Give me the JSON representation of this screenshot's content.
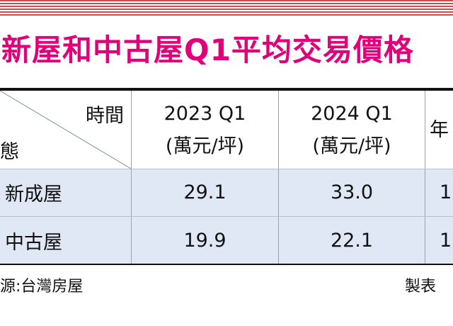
{
  "title": "新屋和中古屋Q1平均交易價格",
  "table": {
    "header_corner_top": "時間",
    "header_corner_bottom": "態",
    "columns": [
      {
        "period": "2023 Q1",
        "unit": "(萬元/坪)"
      },
      {
        "period": "2024 Q1",
        "unit": "(萬元/坪)"
      },
      {
        "period": "年",
        "unit": ""
      }
    ],
    "rows": [
      {
        "label": "新成屋",
        "values": [
          "29.1",
          "33.0",
          "1"
        ]
      },
      {
        "label": "中古屋",
        "values": [
          "19.9",
          "22.1",
          "1"
        ]
      }
    ]
  },
  "footer": {
    "source": "源:台灣房屋",
    "credit": "製表"
  },
  "colors": {
    "title": "#e0007a",
    "row_band": "#dfe8f4",
    "top_stripe": "#d04a52"
  },
  "chart_data": {
    "type": "table",
    "title": "新屋和中古屋Q1平均交易價格",
    "categories": [
      "2023 Q1",
      "2024 Q1"
    ],
    "unit": "(萬元/坪)",
    "series": [
      {
        "name": "新成屋",
        "values": [
          29.1,
          33.0
        ]
      },
      {
        "name": "中古屋",
        "values": [
          19.9,
          22.1
        ]
      }
    ],
    "source": "源:台灣房屋"
  }
}
